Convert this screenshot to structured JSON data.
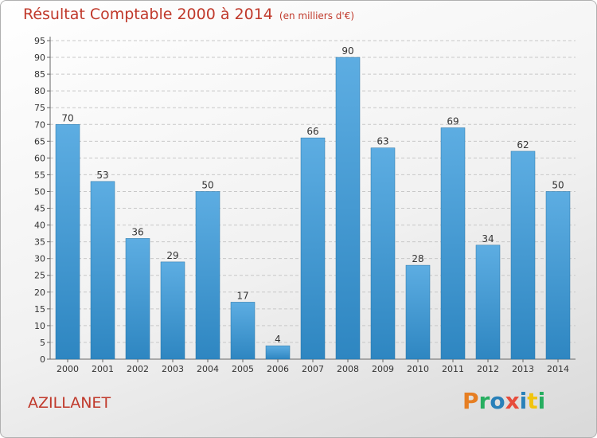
{
  "header": {
    "title": "Résultat Comptable 2000 à 2014",
    "subtitle": "(en milliers d'€)"
  },
  "footer": {
    "commune": "AZILLANET",
    "logo": "Proxiti",
    "logo_colors": [
      "#e67e22",
      "#27ae60",
      "#2980b9",
      "#e74c3c",
      "#2980b9",
      "#f1c40f",
      "#27ae60"
    ]
  },
  "colors": {
    "bar_light": "#5dade2",
    "bar_dark": "#2e86c1",
    "title": "#c0392b"
  },
  "chart_data": {
    "type": "bar",
    "title": "Résultat Comptable 2000 à 2014",
    "subtitle": "(en milliers d'€)",
    "categories": [
      "2000",
      "2001",
      "2002",
      "2003",
      "2004",
      "2005",
      "2006",
      "2007",
      "2008",
      "2009",
      "2010",
      "2011",
      "2012",
      "2013",
      "2014"
    ],
    "values": [
      70,
      53,
      36,
      29,
      50,
      17,
      4,
      66,
      90,
      63,
      28,
      69,
      34,
      62,
      50
    ],
    "xlabel": "",
    "ylabel": "",
    "ylim": [
      0,
      95
    ],
    "yticks": [
      0,
      5,
      10,
      15,
      20,
      25,
      30,
      35,
      40,
      45,
      50,
      55,
      60,
      65,
      70,
      75,
      80,
      85,
      90,
      95
    ],
    "grid": "horizontal-dashed",
    "data_labels": true
  }
}
